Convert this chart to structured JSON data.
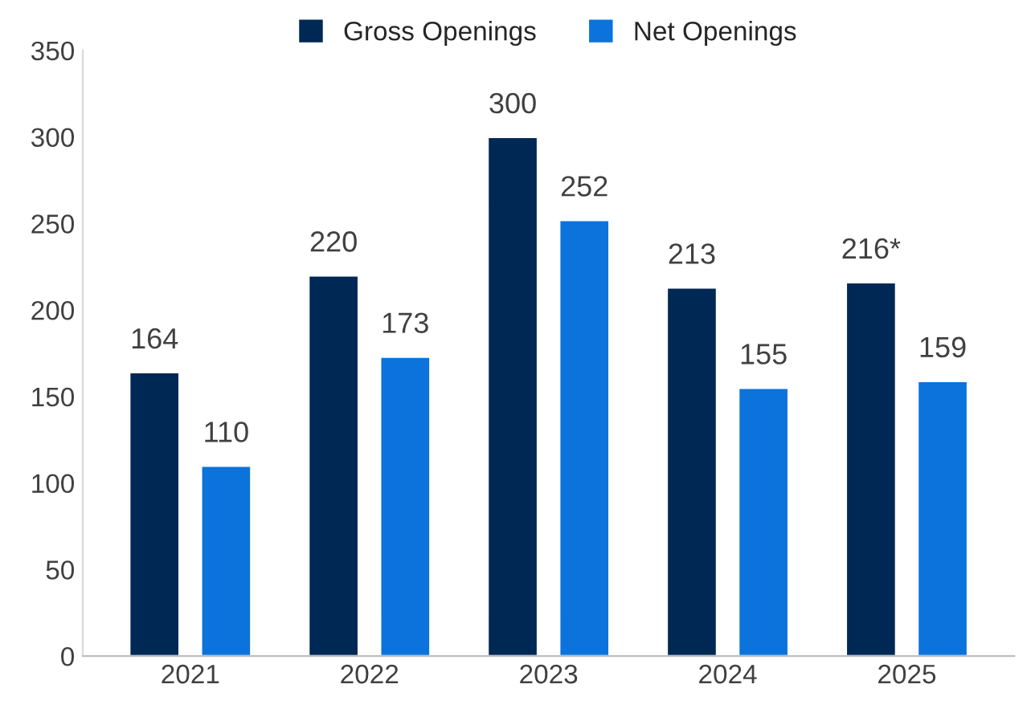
{
  "chart_data": {
    "type": "bar",
    "categories": [
      "2021",
      "2022",
      "2023",
      "2024",
      "2025"
    ],
    "series": [
      {
        "name": "Gross Openings",
        "color": "#002855",
        "values": [
          164,
          220,
          300,
          213,
          216
        ],
        "value_labels": [
          "164",
          "220",
          "300",
          "213",
          "216*"
        ]
      },
      {
        "name": "Net Openings",
        "color": "#0b73db",
        "values": [
          110,
          173,
          252,
          155,
          159
        ],
        "value_labels": [
          "110",
          "173",
          "252",
          "155",
          "159"
        ]
      }
    ],
    "ylim": [
      0,
      350
    ],
    "yticks": [
      0,
      50,
      100,
      150,
      200,
      250,
      300,
      350
    ],
    "grid": false,
    "legend": "top"
  }
}
